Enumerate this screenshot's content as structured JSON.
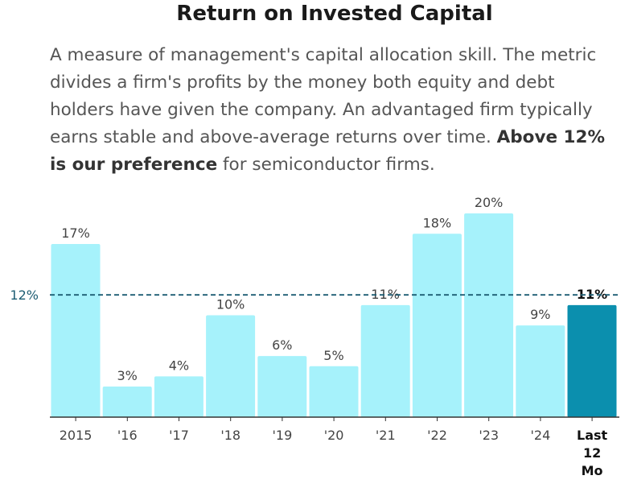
{
  "title": "Return on Invested Capital",
  "description": {
    "text": "A measure of management's capital allocation skill. The metric divides a firm's profits by the money both equity and debt holders have given the company. An advantaged firm typically earns stable and above-average returns over time. ",
    "emphasis": "Above 12% is our preference",
    "suffix": " for semiconductor firms."
  },
  "colors": {
    "bar": "#a6f2fb",
    "highlight_bar": "#0b8fae",
    "reference_line": "#1d5d73",
    "text": "#444444"
  },
  "chart_data": {
    "type": "bar",
    "categories": [
      "2015",
      "'16",
      "'17",
      "'18",
      "'19",
      "'20",
      "'21",
      "'22",
      "'23",
      "'24",
      "Last 12 Mo"
    ],
    "values": [
      17,
      3,
      4,
      10,
      6,
      5,
      11,
      18,
      20,
      9,
      11
    ],
    "labels": [
      "17%",
      "3%",
      "4%",
      "10%",
      "6%",
      "5%",
      "11%",
      "18%",
      "20%",
      "9%",
      "11%"
    ],
    "highlight_index": 10,
    "reference_line": {
      "value": 12,
      "label": "12%",
      "style": "dashed"
    },
    "ylim": [
      0,
      20
    ],
    "title": "",
    "xlabel": "",
    "ylabel": "",
    "grid": false
  }
}
